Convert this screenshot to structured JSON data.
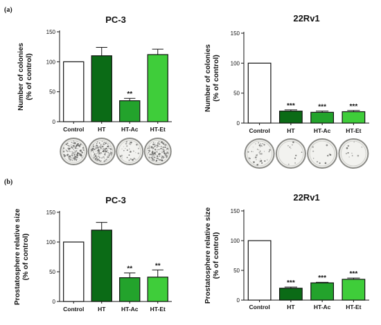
{
  "panel_labels": [
    "(a)",
    "(b)"
  ],
  "colors": {
    "Control": "#ffffff",
    "HT": "#0b6b16",
    "HT-Ac": "#23a32c",
    "HT-Et": "#3fcd3a"
  },
  "chart_data": [
    {
      "type": "bar",
      "title": "PC-3",
      "ylabel": "Number of colonies\n(% of control)",
      "categories": [
        "Control",
        "HT",
        "HT-Ac",
        "HT-Et"
      ],
      "values": [
        100,
        110,
        35,
        112
      ],
      "errors": [
        0,
        14,
        4,
        9
      ],
      "significance": [
        "",
        "",
        "**",
        ""
      ],
      "ylim": [
        0,
        150
      ],
      "yticks": [
        0,
        50,
        100,
        150
      ],
      "colony_images": true
    },
    {
      "type": "bar",
      "title": "22Rv1",
      "ylabel": "Number of colonies\n(% of control)",
      "categories": [
        "Control",
        "HT",
        "HT-Ac",
        "HT-Et"
      ],
      "values": [
        100,
        20,
        18,
        19
      ],
      "errors": [
        0,
        2,
        2,
        2
      ],
      "significance": [
        "",
        "***",
        "***",
        "***"
      ],
      "ylim": [
        0,
        150
      ],
      "yticks": [
        0,
        50,
        100,
        150
      ],
      "colony_images": true
    },
    {
      "type": "bar",
      "title": "PC-3",
      "ylabel": "Prostatosphere relative size\n(% of control)",
      "categories": [
        "Control",
        "HT",
        "HT-Ac",
        "HT-Et"
      ],
      "values": [
        100,
        120,
        40,
        41
      ],
      "errors": [
        0,
        13,
        8,
        12
      ],
      "significance": [
        "",
        "",
        "**",
        "**"
      ],
      "ylim": [
        0,
        150
      ],
      "yticks": [
        0,
        50,
        100,
        150
      ],
      "colony_images": false
    },
    {
      "type": "bar",
      "title": "22Rv1",
      "ylabel": "Prostatosphere relative size\n(% of control)",
      "categories": [
        "Control",
        "HT",
        "HT-Ac",
        "HT-Et"
      ],
      "values": [
        100,
        20,
        29,
        35
      ],
      "errors": [
        0,
        2,
        1,
        2
      ],
      "significance": [
        "",
        "***",
        "***",
        "***"
      ],
      "ylim": [
        0,
        150
      ],
      "yticks": [
        0,
        50,
        100,
        150
      ],
      "colony_images": false
    }
  ]
}
